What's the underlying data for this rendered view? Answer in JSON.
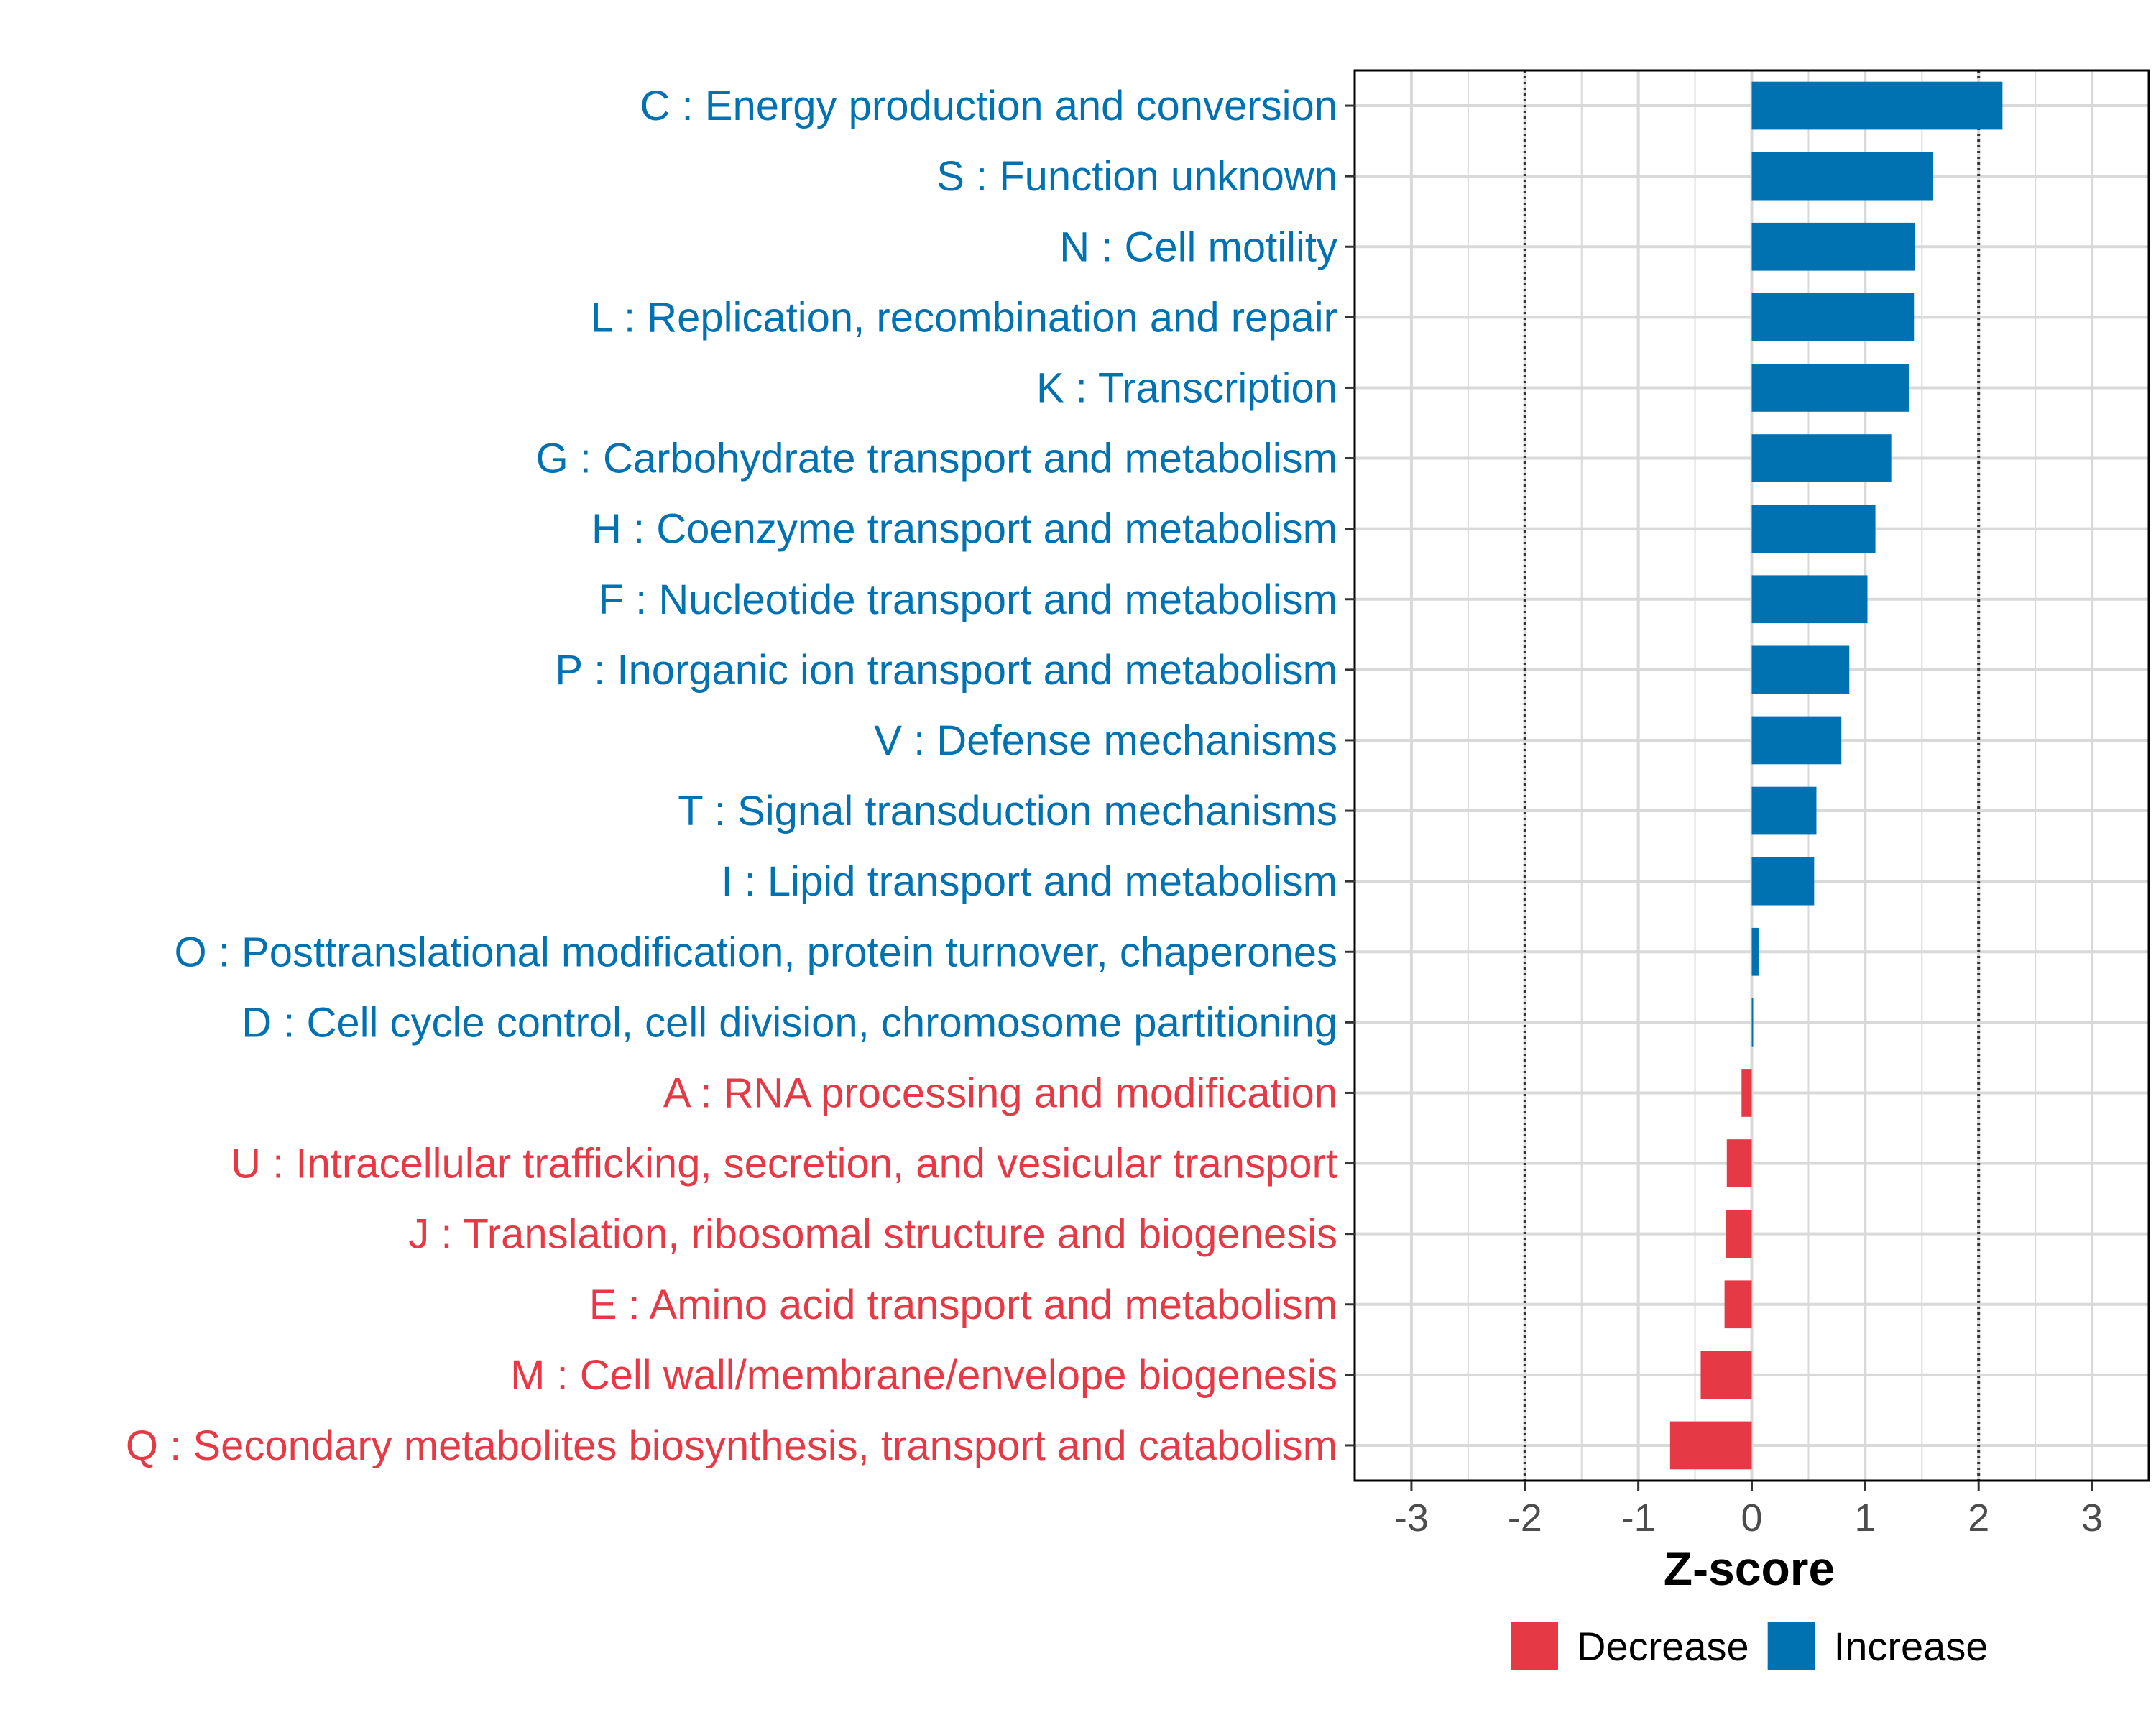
{
  "chart_data": {
    "type": "bar",
    "orientation": "horizontal",
    "title": "",
    "xlabel": "Z-score",
    "ylabel": "",
    "xlim": [
      -3.5,
      3.5
    ],
    "x_ticks": [
      -3,
      -2,
      -1,
      0,
      1,
      2,
      3
    ],
    "x_tick_labels": [
      "-3",
      "-2",
      "-1",
      "0",
      "1",
      "2",
      "3"
    ],
    "reference_lines": [
      -2,
      2
    ],
    "grid": true,
    "legend_position": "bottom",
    "colors": {
      "Increase": "#0072b2",
      "Decrease": "#e63946"
    },
    "legend": [
      {
        "label": "Decrease",
        "color": "#e63946"
      },
      {
        "label": "Increase",
        "color": "#0072b2"
      }
    ],
    "categories": [
      {
        "label": "C : Energy production and conversion",
        "value": 2.21,
        "direction": "Increase"
      },
      {
        "label": "S : Function unknown",
        "value": 1.6,
        "direction": "Increase"
      },
      {
        "label": "N : Cell motility",
        "value": 1.44,
        "direction": "Increase"
      },
      {
        "label": "L : Replication, recombination and repair",
        "value": 1.43,
        "direction": "Increase"
      },
      {
        "label": "K : Transcription",
        "value": 1.39,
        "direction": "Increase"
      },
      {
        "label": "G : Carbohydrate transport and metabolism",
        "value": 1.23,
        "direction": "Increase"
      },
      {
        "label": "H : Coenzyme transport and metabolism",
        "value": 1.09,
        "direction": "Increase"
      },
      {
        "label": "F : Nucleotide transport and metabolism",
        "value": 1.02,
        "direction": "Increase"
      },
      {
        "label": "P : Inorganic ion transport and metabolism",
        "value": 0.86,
        "direction": "Increase"
      },
      {
        "label": "V : Defense mechanisms",
        "value": 0.79,
        "direction": "Increase"
      },
      {
        "label": "T : Signal transduction mechanisms",
        "value": 0.57,
        "direction": "Increase"
      },
      {
        "label": "I : Lipid transport and metabolism",
        "value": 0.55,
        "direction": "Increase"
      },
      {
        "label": "O : Posttranslational modification, protein turnover, chaperones",
        "value": 0.06,
        "direction": "Increase"
      },
      {
        "label": "D : Cell cycle control, cell division, chromosome partitioning",
        "value": 0.01,
        "direction": "Increase"
      },
      {
        "label": "A : RNA processing and modification",
        "value": -0.09,
        "direction": "Decrease"
      },
      {
        "label": "U : Intracellular trafficking, secretion, and vesicular transport",
        "value": -0.22,
        "direction": "Decrease"
      },
      {
        "label": "J : Translation, ribosomal structure and biogenesis",
        "value": -0.23,
        "direction": "Decrease"
      },
      {
        "label": "E : Amino acid transport and metabolism",
        "value": -0.24,
        "direction": "Decrease"
      },
      {
        "label": "M : Cell wall/membrane/envelope biogenesis",
        "value": -0.45,
        "direction": "Decrease"
      },
      {
        "label": "Q : Secondary metabolites biosynthesis, transport and catabolism",
        "value": -0.72,
        "direction": "Decrease"
      }
    ]
  }
}
